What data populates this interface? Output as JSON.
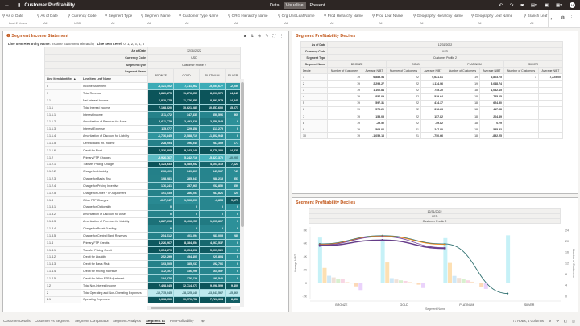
{
  "app": {
    "back_icon": "arrow-left-icon",
    "title": "Customer Profitability",
    "modes": [
      "Data",
      "Visualize",
      "Present"
    ],
    "active_mode": "Visualize",
    "toolbar_icons": [
      "undo-icon",
      "redo-icon",
      "camera-icon",
      "comment-icon",
      "save-icon",
      "export-icon"
    ],
    "avatar": "M"
  },
  "filters": [
    {
      "label": "As of Date",
      "value": "Last 2 Years"
    },
    {
      "label": "As of Date",
      "value": "All"
    },
    {
      "label": "Currency Code",
      "value": "USD"
    },
    {
      "label": "Segment Type",
      "value": "All"
    },
    {
      "label": "Segment Name",
      "value": "All"
    },
    {
      "label": "Customer Type Name",
      "value": "All"
    },
    {
      "label": "ORG Hierarchy Name",
      "value": "All"
    },
    {
      "label": "Org Unit Leaf Name",
      "value": "All"
    },
    {
      "label": "Prod Hierarchy Name",
      "value": "All"
    },
    {
      "label": "Prod Leaf Name",
      "value": "All"
    },
    {
      "label": "Geography Hierarchy Name",
      "value": "All"
    },
    {
      "label": "Geography Leaf Name",
      "value": "All"
    },
    {
      "label": "Branch Leaf",
      "value": "All"
    }
  ],
  "income": {
    "title": "Segment Income Statement",
    "hier_label": "Line Item Hierarchy Name:",
    "hier_value": "Income Statement Hierarchy",
    "level_label": "Line Item Level:",
    "level_value": "0, 1, 2, 3, 4, 5",
    "as_of_label": "As of Date",
    "as_of": "12/31/2022",
    "currency_label": "Currency Code",
    "currency": "USD",
    "seg_type_label": "Segment Type",
    "seg_type": "Customer Profile 2",
    "seg_name_label": "Segment Name",
    "col_id": "Line Item Identifier ▲",
    "col_name": "Line Item Leaf Name",
    "segments": [
      "BRONZE",
      "GOLD",
      "PLATINUM",
      "SILVER"
    ],
    "rows": [
      {
        "id": "0",
        "name": "Income Statement",
        "v": [
          "-4,121,402",
          "-7,211,962",
          "-5,054,677",
          "-2,059"
        ]
      },
      {
        "id": "1",
        "name": "Total Revenue",
        "v": [
          "6,820,275",
          "11,276,555",
          "8,593,579",
          "14,345"
        ]
      },
      {
        "id": "1.1",
        "name": "Net Interest Income",
        "v": [
          "6,820,275",
          "11,276,555",
          "8,593,579",
          "14,345"
        ]
      },
      {
        "id": "1.1.1",
        "name": "Total Interest Income",
        "v": [
          "7,168,020",
          "10,621,085",
          "10,357,600",
          "15,071"
        ]
      },
      {
        "id": "1.1.1.1",
        "name": "Interest Income",
        "v": [
          "211,472",
          "347,835",
          "350,596",
          "569"
        ]
      },
      {
        "id": "1.1.1.2",
        "name": "Amortization of Premium for Asset",
        "v": [
          "1,611,779",
          "2,492,529",
          "2,458,545",
          "0"
        ]
      },
      {
        "id": "1.1.1.3",
        "name": "Interest Expense",
        "v": [
          "115,977",
          "229,458",
          "113,275",
          "0"
        ]
      },
      {
        "id": "1.1.1.4",
        "name": "Amortization of Discount for Liability",
        "v": [
          "-1,736,845",
          "-2,588,719",
          "-1,302,945",
          "0"
        ]
      },
      {
        "id": "1.1.1.5",
        "name": "Central Bank Int. Income",
        "v": [
          "228,954",
          "396,545",
          "287,309",
          "177"
        ]
      },
      {
        "id": "1.1.1.6",
        "name": "Credit for Float",
        "v": [
          "6,316,905",
          "9,343,649",
          "8,479,302",
          "14,325"
        ]
      },
      {
        "id": "1.1.2",
        "name": "Primary FTP Charges",
        "v": [
          "-5,926,767",
          "-5,242,716",
          "-5,827,370",
          "-10,205"
        ]
      },
      {
        "id": "1.1.2.1",
        "name": "Transfer Pricing Charge",
        "v": [
          "5,123,633",
          "4,585,952",
          "4,603,319",
          "7,623"
        ]
      },
      {
        "id": "1.1.2.2",
        "name": "Charge for Liquidity",
        "v": [
          "236,401",
          "349,807",
          "347,567",
          "747"
        ]
      },
      {
        "id": "1.1.2.3",
        "name": "Charge for Basis Risk",
        "v": [
          "198,981",
          "285,541",
          "288,215",
          "551"
        ]
      },
      {
        "id": "1.1.2.4",
        "name": "Charge for Pricing Incentive",
        "v": [
          "176,241",
          "257,965",
          "252,850",
          "359"
        ]
      },
      {
        "id": "1.1.2.5",
        "name": "Charge for Other FTP Adjustment",
        "v": [
          "191,535",
          "286,051",
          "287,821",
          "625"
        ]
      },
      {
        "id": "1.1.3",
        "name": "Other FTP Charges",
        "v": [
          "-647,947",
          "-1,766,590",
          "-3,858",
          "9,177"
        ]
      },
      {
        "id": "1.1.3.1",
        "name": "Charge for Optionality",
        "v": [
          "0",
          "0",
          "0",
          "0"
        ]
      },
      {
        "id": "1.1.3.2",
        "name": "Amortization of Discount for Asset",
        "v": [
          "0",
          "0",
          "0",
          "0"
        ]
      },
      {
        "id": "1.1.3.3",
        "name": "Amortization of Premium for Liability",
        "v": [
          "1,827,698",
          "3,406,255",
          "1,695,807",
          "0"
        ]
      },
      {
        "id": "1.1.3.4",
        "name": "Charge for Break Funding",
        "v": [
          "0",
          "0",
          "0",
          "0"
        ]
      },
      {
        "id": "1.1.3.5",
        "name": "Charge for Central Bank Reserves",
        "v": [
          "254,512",
          "401,094",
          "283,005",
          "280"
        ]
      },
      {
        "id": "1.1.4",
        "name": "Primary FTP Credits",
        "v": [
          "4,226,967",
          "8,384,554",
          "4,067,537",
          "0"
        ]
      },
      {
        "id": "1.1.4.1",
        "name": "Transfer Pricing Credit",
        "v": [
          "5,654,279",
          "6,654,398",
          "5,901,520",
          "0"
        ]
      },
      {
        "id": "1.1.4.2",
        "name": "Credit for Liquidity",
        "v": [
          "252,299",
          "454,405",
          "225,804",
          "0"
        ]
      },
      {
        "id": "1.1.4.3",
        "name": "Credit for Basis Risk",
        "v": [
          "193,505",
          "385,237",
          "192,706",
          "0"
        ]
      },
      {
        "id": "1.1.4.4",
        "name": "Credit for Pricing Incentive",
        "v": [
          "172,107",
          "336,296",
          "165,557",
          "0"
        ]
      },
      {
        "id": "1.1.4.5",
        "name": "Credit for Other FTP Adjustment",
        "v": [
          "194,878",
          "376,626",
          "195,540",
          "0"
        ]
      },
      {
        "id": "1.2",
        "name": "Total Non-Interest Income",
        "v": [
          "7,498,045",
          "12,714,071",
          "9,098,599",
          "9,409"
        ]
      },
      {
        "id": "2",
        "name": "Total Operating and Non-Operating Expenses",
        "v": [
          "-10,715,045",
          "-18,125,140",
          "-13,541,567",
          "-15,869"
        ]
      },
      {
        "id": "2.1",
        "name": "Operating Expenses",
        "v": [
          "6,308,050",
          "10,770,758",
          "7,726,304",
          "8,856"
        ]
      }
    ]
  },
  "deciles": {
    "title": "Segment Profitability Deciles",
    "as_of_label": "As of Date",
    "as_of": "12/31/2022",
    "currency_label": "Currency Code",
    "currency": "USD",
    "seg_type_label": "Segment Type",
    "seg_type": "Customer Profile 2",
    "seg_name_label": "Segment Name",
    "decile_label": "Decile",
    "segments": [
      "BRONZE",
      "GOLD",
      "PLATINUM",
      "SILVER"
    ],
    "sub_cols": [
      "Number of Customers",
      "Average NIBT"
    ],
    "rows": [
      {
        "d": "1",
        "v": [
          "19",
          "6,885.54",
          "22",
          "6,621.81",
          "19",
          "6,803.75",
          "1",
          "7,225.00"
        ]
      },
      {
        "d": "2",
        "v": [
          "19",
          "2,295.27",
          "22",
          "3,114.06",
          "19",
          "3,048.74",
          "",
          ""
        ]
      },
      {
        "d": "3",
        "v": [
          "19",
          "1,100.84",
          "22",
          "745.20",
          "18",
          "1,082.15",
          "",
          ""
        ]
      },
      {
        "d": "4",
        "v": [
          "19",
          "857.09",
          "22",
          "539.64",
          "18",
          "785.05",
          "",
          ""
        ]
      },
      {
        "d": "5",
        "v": [
          "19",
          "597.31",
          "22",
          "414.37",
          "18",
          "624.50",
          "",
          ""
        ]
      },
      {
        "d": "6",
        "v": [
          "19",
          "576.20",
          "22",
          "316.23",
          "18",
          "417.68",
          "",
          ""
        ]
      },
      {
        "d": "7",
        "v": [
          "19",
          "155.05",
          "22",
          "157.82",
          "18",
          "204.89",
          "",
          ""
        ]
      },
      {
        "d": "8",
        "v": [
          "19",
          "-29.50",
          "22",
          "-59.82",
          "18",
          "0.79",
          "",
          ""
        ]
      },
      {
        "d": "9",
        "v": [
          "19",
          "-505.06",
          "21",
          "-247.00",
          "18",
          "-555.53",
          "",
          ""
        ]
      },
      {
        "d": "10",
        "v": [
          "19",
          "-1,059.13",
          "21",
          "-750.66",
          "18",
          "-892.25",
          "",
          ""
        ]
      }
    ]
  },
  "chart": {
    "title": "Segment Profitability Deciles",
    "hdr": [
      "12/31/2022",
      "USD",
      "Customer Profile 2"
    ]
  },
  "chart_data": {
    "type": "bar",
    "categories": [
      "BRONZE",
      "GOLD",
      "PLATINUM",
      "SILVER"
    ],
    "xlabel": "Segment Name",
    "ylabel": "Average NIBT",
    "y2label": "Number of Customers",
    "ylim": [
      -2000,
      8000
    ],
    "yticks": [
      "-2K",
      "0",
      "2K",
      "4K",
      "6K",
      "8K"
    ],
    "y2lim": [
      0,
      24
    ],
    "y2ticks": [
      "0",
      "4",
      "8",
      "12",
      "16",
      "20",
      "24"
    ],
    "bar_series": [
      {
        "decile": "1",
        "values": [
          6885.54,
          6621.81,
          6803.75,
          7225.0
        ],
        "color": "#c6f1f7"
      },
      {
        "decile": "2",
        "values": [
          2295.27,
          3114.06,
          3048.74,
          null
        ],
        "color": "#fde0b3"
      },
      {
        "decile": "3",
        "values": [
          1100.84,
          745.2,
          1082.15,
          null
        ],
        "color": "#cfe8f7"
      },
      {
        "decile": "4",
        "values": [
          857.09,
          539.64,
          785.05,
          null
        ],
        "color": "#efe1d8"
      },
      {
        "decile": "5",
        "values": [
          597.31,
          414.37,
          624.5,
          null
        ],
        "color": "#d8f0cf"
      },
      {
        "decile": "6",
        "values": [
          576.2,
          316.23,
          417.68,
          null
        ],
        "color": "#f8d6e4"
      },
      {
        "decile": "7",
        "values": [
          155.05,
          157.82,
          204.89,
          null
        ],
        "color": "#fbe3cb"
      },
      {
        "decile": "8",
        "values": [
          -29.5,
          -59.82,
          0.79,
          null
        ],
        "color": "#eeeeee"
      },
      {
        "decile": "9",
        "values": [
          -505.06,
          -247.0,
          -555.53,
          null
        ],
        "color": "#fcd9b8"
      },
      {
        "decile": "10",
        "values": [
          -1059.13,
          -750.66,
          -892.25,
          null
        ],
        "color": "#ead2fb"
      }
    ],
    "line_series": [
      {
        "decile": "1",
        "values": [
          19,
          22,
          19,
          1
        ],
        "color": "#2e6f6f"
      },
      {
        "decile": "2",
        "values": [
          19,
          22,
          19,
          null
        ],
        "color": "#ef8a1b"
      },
      {
        "decile": "3",
        "values": [
          19,
          22,
          18,
          null
        ],
        "color": "#7a4aa0"
      },
      {
        "decile": "9",
        "values": [
          19,
          21,
          18,
          null
        ],
        "color": "#5c3a7e"
      },
      {
        "decile": "10",
        "values": [
          19,
          21,
          18,
          null
        ],
        "color": "#6b3e8f"
      }
    ],
    "grid": false,
    "legend": "none"
  },
  "tabs": [
    "Customer Details",
    "Customer vs Segment",
    "Segment Comparator",
    "Segment Analysis",
    "Segment IS",
    "RM Profitability"
  ],
  "active_tab": "Segment IS",
  "status": "77 Rows, 4 Columns"
}
